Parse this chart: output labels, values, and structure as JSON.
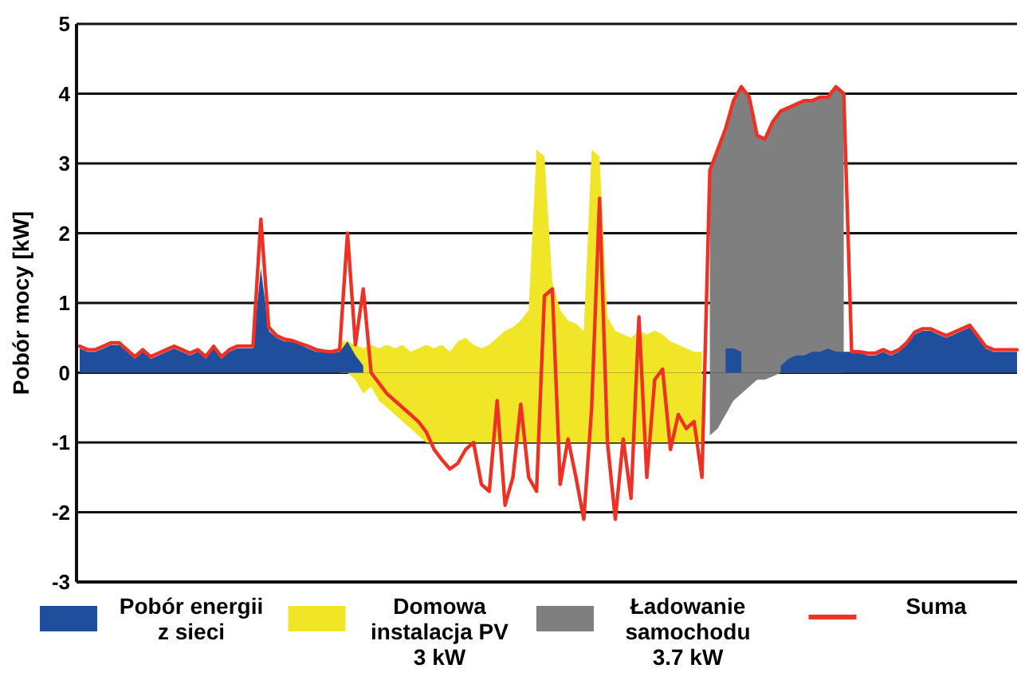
{
  "chart_data": {
    "type": "area",
    "ylabel": "Pobór mocy [kW]",
    "categories": [
      null,
      null,
      null,
      null,
      null,
      null,
      null,
      null,
      null,
      null,
      null,
      null,
      null,
      null,
      null,
      null,
      null,
      null,
      null,
      null,
      null,
      null,
      null,
      null,
      null,
      null,
      null,
      null,
      null,
      null,
      null,
      null,
      null,
      null,
      null,
      null,
      null,
      null,
      null,
      null,
      null,
      null,
      null,
      null,
      null,
      null,
      null,
      null,
      null,
      null,
      null,
      null,
      null,
      null,
      null,
      null,
      null,
      null,
      null,
      null,
      null,
      null,
      null,
      null,
      null,
      null,
      null,
      null,
      null,
      null,
      null,
      null,
      null,
      null,
      null,
      null,
      null,
      null,
      null,
      null,
      null,
      null,
      null,
      null,
      null,
      null,
      null,
      null,
      null,
      null,
      null,
      null,
      null,
      null,
      null,
      null,
      null,
      null,
      null,
      null,
      null,
      null,
      null,
      null,
      null,
      null,
      null,
      null,
      null,
      null,
      null,
      null,
      null,
      null,
      null,
      null,
      null,
      null,
      null,
      null
    ],
    "series": [
      {
        "name": "Domowa\ninstalacja PV\n3 kW",
        "color": "#f0e526",
        "values": [
          null,
          null,
          null,
          null,
          null,
          null,
          null,
          null,
          null,
          null,
          null,
          null,
          null,
          null,
          null,
          null,
          null,
          null,
          null,
          null,
          null,
          null,
          null,
          null,
          null,
          null,
          null,
          null,
          null,
          null,
          null,
          null,
          null,
          0.45,
          0.45,
          0.4,
          0.35,
          0.4,
          0.35,
          0.4,
          0.35,
          0.4,
          0.3,
          0.35,
          0.4,
          0.35,
          0.4,
          0.3,
          0.45,
          0.5,
          0.4,
          0.35,
          0.4,
          0.5,
          0.6,
          0.65,
          0.75,
          0.9,
          3.2,
          3.1,
          1.3,
          0.9,
          0.75,
          0.7,
          0.6,
          3.2,
          3.1,
          0.8,
          0.6,
          0.55,
          0.5,
          0.6,
          0.55,
          0.6,
          0.55,
          0.45,
          0.4,
          0.35,
          0.3,
          0.3,
          null,
          null,
          null,
          null,
          null,
          null,
          null,
          null,
          null,
          null,
          null,
          null,
          null,
          null,
          null,
          null,
          null,
          null,
          null,
          null,
          null,
          null,
          null,
          null,
          null,
          null,
          null,
          null,
          null,
          null,
          null,
          null,
          null,
          null,
          null,
          null,
          null,
          null,
          null,
          null
        ]
      },
      {
        "color": "#f0e526",
        "values": [
          null,
          null,
          null,
          null,
          null,
          null,
          null,
          null,
          null,
          null,
          null,
          null,
          null,
          null,
          null,
          null,
          null,
          null,
          null,
          null,
          null,
          null,
          null,
          null,
          null,
          null,
          null,
          null,
          null,
          null,
          null,
          null,
          null,
          0,
          0,
          -0.1,
          -0.3,
          -0.2,
          -0.4,
          -0.5,
          -0.6,
          -0.7,
          -0.8,
          -0.9,
          -1,
          -1,
          -1,
          -1,
          -1,
          -1,
          -1,
          -1,
          -1,
          -1,
          -1,
          -1,
          -1,
          -1,
          -1,
          -1,
          -1,
          -1,
          -1,
          -1,
          -1,
          -1,
          -1,
          -1,
          -1,
          -1,
          -1,
          -1,
          -1,
          -1,
          -1,
          -1,
          -1,
          -1,
          -1,
          -1,
          null,
          null,
          null,
          null,
          null,
          null,
          null,
          null,
          null,
          null,
          null,
          null,
          null,
          null,
          null,
          null,
          null,
          null,
          null,
          null,
          null,
          null,
          null,
          null,
          null,
          null,
          null,
          null,
          null,
          null,
          null,
          null,
          null,
          null,
          null,
          null,
          null,
          null,
          null,
          null
        ]
      },
      {
        "name": "Ładowanie\nsamochodu\n3.7 kW",
        "color": "#7f7f7f",
        "values": [
          null,
          null,
          null,
          null,
          null,
          null,
          null,
          null,
          null,
          null,
          null,
          null,
          null,
          null,
          null,
          null,
          null,
          null,
          null,
          null,
          null,
          null,
          null,
          null,
          null,
          null,
          null,
          null,
          null,
          null,
          null,
          null,
          null,
          null,
          null,
          null,
          null,
          null,
          null,
          null,
          null,
          null,
          null,
          null,
          null,
          null,
          null,
          null,
          null,
          null,
          null,
          null,
          null,
          null,
          null,
          null,
          null,
          null,
          null,
          null,
          null,
          null,
          null,
          null,
          null,
          null,
          null,
          null,
          null,
          null,
          null,
          null,
          null,
          null,
          null,
          null,
          null,
          null,
          null,
          null,
          2.9,
          3.2,
          3.5,
          3.9,
          4.1,
          3.95,
          3.4,
          3.35,
          3.6,
          3.75,
          3.8,
          3.85,
          3.9,
          3.9,
          3.95,
          3.95,
          4.1,
          4,
          null,
          null,
          null,
          null,
          null,
          null,
          null,
          null,
          null,
          null,
          null,
          null,
          null,
          null,
          null,
          null,
          null,
          null,
          null,
          null,
          null,
          null
        ]
      },
      {
        "color": "#7f7f7f",
        "values": [
          null,
          null,
          null,
          null,
          null,
          null,
          null,
          null,
          null,
          null,
          null,
          null,
          null,
          null,
          null,
          null,
          null,
          null,
          null,
          null,
          null,
          null,
          null,
          null,
          null,
          null,
          null,
          null,
          null,
          null,
          null,
          null,
          null,
          null,
          null,
          null,
          null,
          null,
          null,
          null,
          null,
          null,
          null,
          null,
          null,
          null,
          null,
          null,
          null,
          null,
          null,
          null,
          null,
          null,
          null,
          null,
          null,
          null,
          null,
          null,
          null,
          null,
          null,
          null,
          null,
          null,
          null,
          null,
          null,
          null,
          null,
          null,
          null,
          null,
          null,
          null,
          null,
          null,
          null,
          null,
          -0.9,
          -0.8,
          -0.6,
          -0.4,
          -0.3,
          -0.2,
          -0.1,
          -0.1,
          -0.05,
          0,
          null,
          null,
          null,
          null,
          null,
          null,
          null,
          null,
          null,
          null,
          null,
          null,
          null,
          null,
          null,
          null,
          null,
          null,
          null,
          null,
          null,
          null,
          null,
          null,
          null,
          null,
          null,
          null,
          null,
          null
        ]
      },
      {
        "name": "Pobór energii\nz sieci",
        "color": "#1f4e9c",
        "values": [
          0.35,
          0.3,
          0.3,
          0.35,
          0.4,
          0.4,
          0.3,
          0.2,
          0.3,
          0.2,
          0.25,
          0.3,
          0.35,
          0.3,
          0.25,
          0.3,
          0.2,
          0.35,
          0.2,
          0.3,
          0.35,
          0.35,
          0.35,
          1.5,
          0.6,
          0.5,
          0.45,
          0.45,
          0.4,
          0.35,
          0.3,
          0.3,
          0.28,
          0.3,
          0.45,
          0.25,
          0.1,
          null,
          null,
          null,
          null,
          null,
          null,
          null,
          null,
          null,
          null,
          null,
          null,
          null,
          null,
          null,
          null,
          null,
          null,
          null,
          null,
          null,
          null,
          null,
          null,
          null,
          null,
          null,
          null,
          null,
          null,
          null,
          null,
          null,
          null,
          null,
          null,
          null,
          null,
          null,
          null,
          null,
          null,
          null,
          null,
          null,
          0.35,
          0.35,
          0.3,
          null,
          null,
          null,
          null,
          0.1,
          0.2,
          0.25,
          0.25,
          0.3,
          0.3,
          0.35,
          0.3,
          0.3,
          0.3,
          0.3,
          0.25,
          0.25,
          0.3,
          0.25,
          0.3,
          0.4,
          0.55,
          0.6,
          0.6,
          0.55,
          0.5,
          0.55,
          0.6,
          0.65,
          0.5,
          0.35,
          0.3,
          0.3,
          0.3,
          0.3
        ]
      },
      {
        "name": "Suma",
        "type": "line",
        "color": "#ee3124",
        "values": [
          0.38,
          0.33,
          0.33,
          0.38,
          0.43,
          0.43,
          0.33,
          0.23,
          0.33,
          0.23,
          0.28,
          0.33,
          0.38,
          0.33,
          0.28,
          0.33,
          0.23,
          0.38,
          0.23,
          0.33,
          0.38,
          0.38,
          0.38,
          2.2,
          0.65,
          0.53,
          0.48,
          0.46,
          0.42,
          0.38,
          0.33,
          0.31,
          0.3,
          0.33,
          2,
          0.4,
          1.2,
          0,
          -0.15,
          -0.3,
          -0.4,
          -0.5,
          -0.6,
          -0.7,
          -0.85,
          -1.1,
          -1.25,
          -1.38,
          -1.3,
          -1.1,
          -1,
          -1.6,
          -1.7,
          -0.4,
          -1.9,
          -1.5,
          -0.45,
          -1.5,
          -1.7,
          1.1,
          1.2,
          -1.6,
          -0.95,
          -1.5,
          -2.1,
          -0.5,
          2.5,
          -1,
          -2.1,
          -0.95,
          -1.8,
          0.8,
          -1.5,
          -0.1,
          0.05,
          -1.1,
          -0.6,
          -0.8,
          -0.7,
          -1.5,
          2.9,
          3.2,
          3.5,
          3.9,
          4.1,
          3.95,
          3.4,
          3.35,
          3.6,
          3.75,
          3.8,
          3.85,
          3.9,
          3.9,
          3.95,
          3.95,
          4.1,
          4,
          0.3,
          0.3,
          0.28,
          0.28,
          0.33,
          0.28,
          0.33,
          0.43,
          0.58,
          0.63,
          0.63,
          0.58,
          0.53,
          0.58,
          0.63,
          0.68,
          0.53,
          0.38,
          0.33,
          0.33,
          0.33,
          0.33
        ]
      }
    ],
    "ylim": [
      -3,
      5
    ],
    "yticks": [
      -3,
      -2,
      -1,
      0,
      1,
      2,
      3,
      4,
      5
    ],
    "grid": "y",
    "legend": "bottom",
    "tick_labels": "y"
  }
}
